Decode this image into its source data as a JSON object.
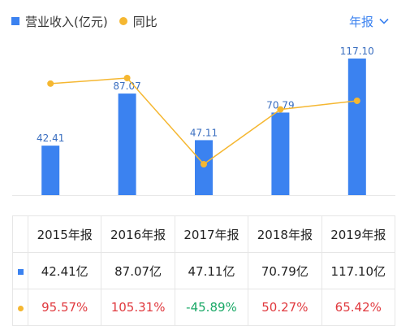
{
  "legend": {
    "bar_label": "营业收入(亿元)",
    "line_label": "同比"
  },
  "period_selector": {
    "label": "年报"
  },
  "colors": {
    "bar": "#3b82f0",
    "line": "#f5b731",
    "positive": "#e0393e",
    "negative": "#19a866",
    "label": "#3b6fc0"
  },
  "chart_data": {
    "type": "bar",
    "categories": [
      "2015年报",
      "2016年报",
      "2017年报",
      "2018年报",
      "2019年报"
    ],
    "series": [
      {
        "name": "营业收入(亿元)",
        "type": "bar",
        "values": [
          42.41,
          87.07,
          47.11,
          70.79,
          117.1
        ],
        "labels": [
          "42.41",
          "87.07",
          "47.11",
          "70.79",
          "117.10"
        ]
      },
      {
        "name": "同比",
        "type": "line",
        "values": [
          95.57,
          105.31,
          -45.89,
          50.27,
          65.42
        ]
      }
    ]
  },
  "table": {
    "headers": [
      "2015年报",
      "2016年报",
      "2017年报",
      "2018年报",
      "2019年报"
    ],
    "revenue": [
      "42.41亿",
      "87.07亿",
      "47.11亿",
      "70.79亿",
      "117.10亿"
    ],
    "yoy": [
      "95.57%",
      "105.31%",
      "-45.89%",
      "50.27%",
      "65.42%"
    ]
  }
}
